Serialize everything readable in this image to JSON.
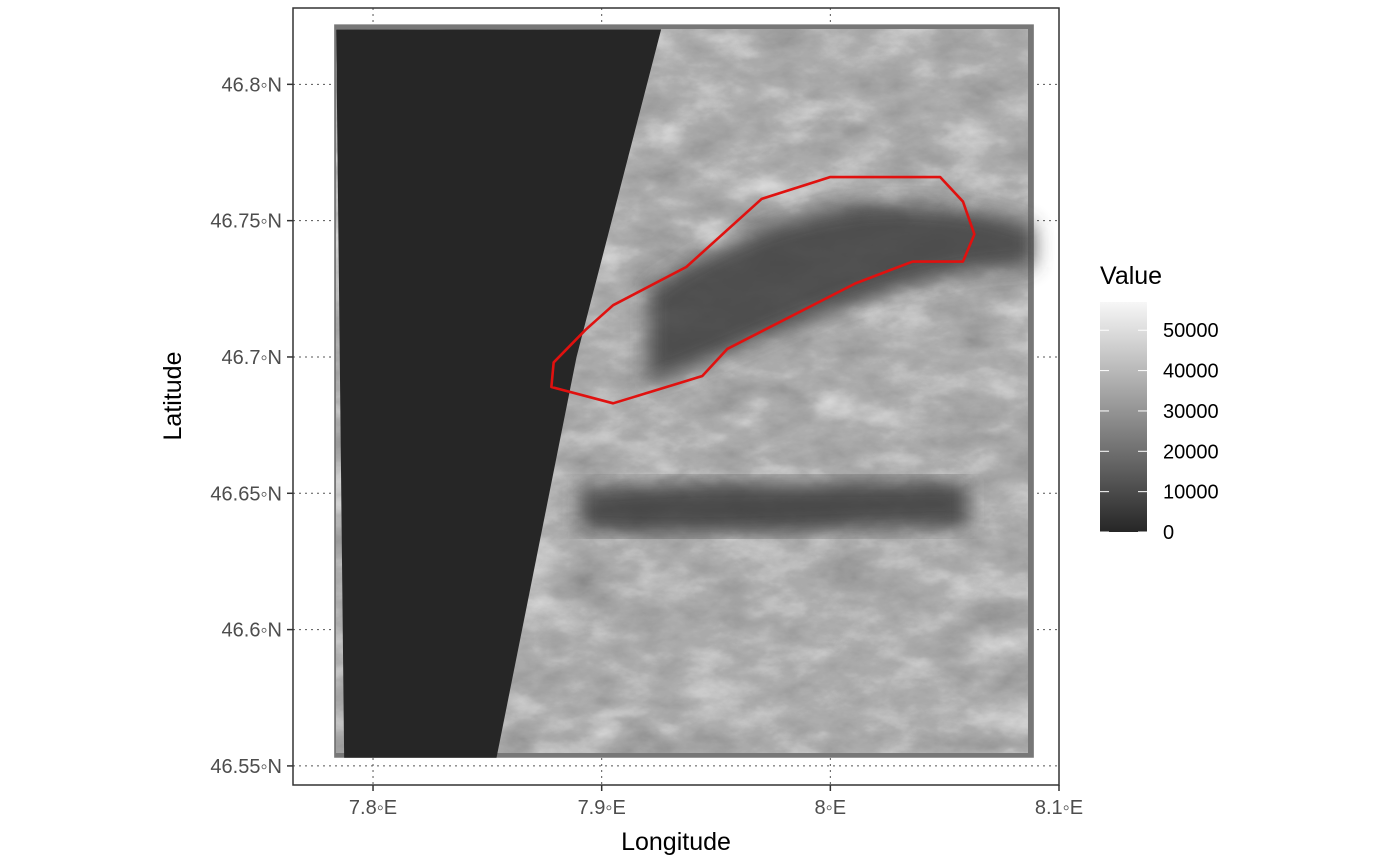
{
  "chart_data": {
    "type": "raster-map",
    "xlabel": "Longitude",
    "ylabel": "Latitude",
    "xlim": [
      7.765,
      8.1
    ],
    "ylim": [
      46.543,
      46.828
    ],
    "x_ticks": [
      7.8,
      7.9,
      8.0,
      8.1
    ],
    "x_tick_labels": [
      "7.8◦E",
      "7.9◦E",
      "8◦E",
      "8.1◦E"
    ],
    "y_ticks": [
      46.55,
      46.6,
      46.65,
      46.7,
      46.75,
      46.8
    ],
    "y_tick_labels": [
      "46.55◦N",
      "46.6◦N",
      "46.65◦N",
      "46.7◦N",
      "46.75◦N",
      "46.8◦N"
    ],
    "grid": "dotted",
    "legend": {
      "title": "Value",
      "position": "right",
      "min": 0,
      "max": 57000,
      "breaks": [
        0,
        10000,
        20000,
        30000,
        40000,
        50000
      ],
      "labels": [
        "0",
        "10000",
        "20000",
        "30000",
        "40000",
        "50000"
      ],
      "color_low": "#262626",
      "color_high": "#f7f7f7"
    },
    "raster_extent": {
      "xmin": 7.783,
      "xmax": 8.089,
      "ymin": 46.553,
      "ymax": 46.822
    },
    "nodata_edge": [
      [
        7.926,
        46.822
      ],
      [
        7.889,
        46.7
      ],
      [
        7.854,
        46.553
      ]
    ],
    "outline": {
      "color": "#e0110f",
      "points": [
        [
          7.878,
          46.689
        ],
        [
          7.879,
          46.698
        ],
        [
          7.893,
          46.71
        ],
        [
          7.905,
          46.719
        ],
        [
          7.937,
          46.733
        ],
        [
          7.97,
          46.758
        ],
        [
          8.0,
          46.766
        ],
        [
          8.048,
          46.766
        ],
        [
          8.058,
          46.757
        ],
        [
          8.063,
          46.745
        ],
        [
          8.058,
          46.735
        ],
        [
          8.036,
          46.735
        ],
        [
          8.011,
          46.727
        ],
        [
          7.955,
          46.703
        ],
        [
          7.944,
          46.693
        ],
        [
          7.905,
          46.683
        ]
      ]
    }
  }
}
